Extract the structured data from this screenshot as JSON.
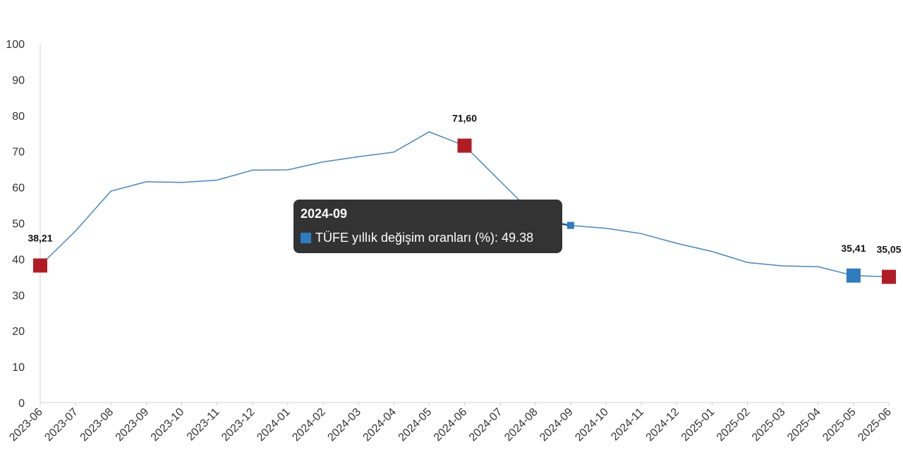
{
  "chart_data": {
    "type": "line",
    "title": "",
    "xlabel": "",
    "ylabel": "",
    "ylim": [
      0,
      100
    ],
    "yticks": [
      0,
      10,
      20,
      30,
      40,
      50,
      60,
      70,
      80,
      90,
      100
    ],
    "grid": false,
    "categories": [
      "2023-06",
      "2023-07",
      "2023-08",
      "2023-09",
      "2023-10",
      "2023-11",
      "2023-12",
      "2024-01",
      "2024-02",
      "2024-03",
      "2024-04",
      "2024-05",
      "2024-06",
      "2024-07",
      "2024-08",
      "2024-09",
      "2024-10",
      "2024-11",
      "2024-12",
      "2025-01",
      "2025-02",
      "2025-03",
      "2025-04",
      "2025-05",
      "2025-06"
    ],
    "series": [
      {
        "name": "TÜFE yıllık değişim oranları (%)",
        "color": "#4a86b8",
        "values": [
          38.21,
          47.83,
          58.94,
          61.53,
          61.36,
          61.98,
          64.77,
          64.86,
          67.07,
          68.5,
          69.8,
          75.45,
          71.6,
          61.78,
          51.97,
          49.38,
          48.58,
          47.09,
          44.38,
          42.12,
          39.05,
          38.1,
          37.86,
          35.41,
          35.05
        ]
      }
    ],
    "highlight_markers": [
      {
        "category": "2023-06",
        "label": "38,21",
        "color": "#b01c24"
      },
      {
        "category": "2024-06",
        "label": "71,60",
        "color": "#b01c24"
      },
      {
        "category": "2025-05",
        "label": "35,41",
        "color": "#2e7bbf"
      },
      {
        "category": "2025-06",
        "label": "35,05",
        "color": "#b01c24"
      }
    ],
    "hover_marker": {
      "category": "2024-09",
      "color": "#2e7bbf"
    },
    "tooltip": {
      "title": "2024-09",
      "row": "TÜFE yıllık değişim oranları (%): 49.38",
      "swatch_color": "#2e7bbf"
    }
  }
}
